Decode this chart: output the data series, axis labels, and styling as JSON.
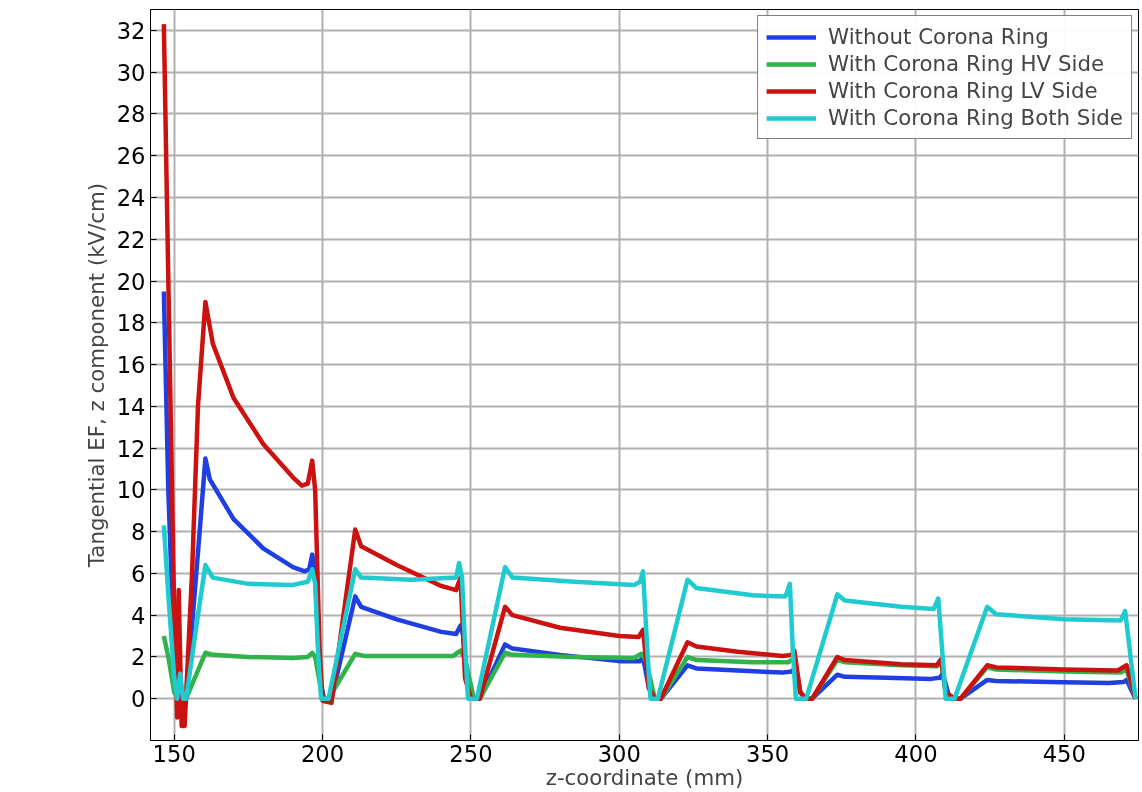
{
  "chart_data": {
    "type": "line",
    "xlabel": "z-coordinate (mm)",
    "ylabel": "Tangential EF, z component (kV/cm)",
    "xlim": [
      142,
      475
    ],
    "ylim": [
      -2,
      33
    ],
    "xticks": [
      150,
      200,
      250,
      300,
      350,
      400,
      450
    ],
    "yticks": [
      0,
      2,
      4,
      6,
      8,
      10,
      12,
      14,
      16,
      18,
      20,
      22,
      24,
      26,
      28,
      30,
      32
    ],
    "grid": true,
    "legend": "top right",
    "line_style": "solid",
    "marker": "none",
    "series": [
      {
        "name": "Without Corona Ring",
        "color": "#1f3fe0",
        "x": [
          146.5,
          148,
          150,
          152,
          153,
          154,
          158,
          160.5,
          162,
          170,
          180,
          190,
          194,
          195.5,
          196.5,
          197.5,
          199,
          200.5,
          203,
          211,
          213,
          225,
          240,
          245,
          246.5,
          247.5,
          249,
          251,
          253,
          261.5,
          264,
          280,
          300,
          307,
          308,
          310,
          312,
          314,
          323,
          326,
          340,
          355,
          358,
          359.5,
          361,
          363,
          365,
          373.5,
          376,
          390,
          405,
          408,
          409,
          411,
          413,
          415,
          424,
          427,
          445,
          465,
          470,
          471,
          474
        ],
        "values": [
          19.5,
          10,
          2,
          0,
          -0.3,
          0,
          7,
          11.5,
          10.5,
          8.6,
          7.2,
          6.3,
          6.1,
          6.2,
          6.9,
          6,
          1,
          0,
          0,
          4.9,
          4.4,
          3.8,
          3.2,
          3.1,
          3.5,
          3,
          0.5,
          0,
          0,
          2.6,
          2.4,
          2.1,
          1.8,
          1.8,
          2.0,
          0.5,
          0,
          0,
          1.6,
          1.45,
          1.35,
          1.25,
          1.3,
          1.5,
          0.3,
          0,
          0,
          1.15,
          1.05,
          1.0,
          0.95,
          1.0,
          1.2,
          0.2,
          0,
          0,
          0.9,
          0.85,
          0.8,
          0.75,
          0.8,
          0.9,
          0
        ]
      },
      {
        "name": "With Corona Ring HV Side",
        "color": "#2fb34a",
        "x": [
          146.5,
          148,
          150,
          152,
          154,
          160.5,
          163,
          175,
          190,
          195,
          196.5,
          197.5,
          200,
          202,
          211,
          214,
          230,
          244,
          246.5,
          248,
          251,
          253,
          261.5,
          264,
          285,
          305,
          307.5,
          309,
          312,
          314,
          323,
          326,
          345,
          357,
          359,
          361,
          363,
          365,
          373.5,
          376,
          395,
          407,
          408.5,
          410,
          413,
          415,
          424,
          427,
          450,
          469,
          471,
          474
        ],
        "values": [
          3,
          2,
          0.3,
          0,
          0,
          2.2,
          2.1,
          2.0,
          1.95,
          2.0,
          2.2,
          2,
          0,
          0,
          2.15,
          2.05,
          2.05,
          2.05,
          2.3,
          1.9,
          0,
          0,
          2.2,
          2.1,
          2.0,
          1.95,
          2.15,
          1.8,
          0,
          0,
          2.0,
          1.85,
          1.75,
          1.75,
          1.95,
          0.3,
          0,
          0,
          1.85,
          1.75,
          1.6,
          1.55,
          1.75,
          0.3,
          0,
          0,
          1.5,
          1.4,
          1.3,
          1.25,
          1.4,
          0
        ]
      },
      {
        "name": "With Corona Ring LV Side",
        "color": "#cc1111",
        "x": [
          146.5,
          149,
          150,
          151,
          151.5,
          152.5,
          153.5,
          156,
          158,
          160.5,
          163,
          170,
          180,
          190,
          193,
          195,
          196.5,
          197.5,
          199,
          200,
          203,
          211,
          213,
          225,
          240,
          245,
          246.5,
          248,
          250,
          253,
          261.5,
          264,
          280,
          300,
          306.5,
          308,
          310,
          312,
          314,
          323,
          326,
          340,
          355,
          358,
          359,
          361,
          363,
          365,
          373.5,
          376,
          395,
          407,
          408.5,
          410,
          413,
          415,
          424,
          427,
          450,
          468,
          471,
          474
        ],
        "values": [
          32.3,
          12,
          4,
          -0.9,
          5.2,
          -1.3,
          -1.3,
          6,
          14,
          19,
          17,
          14.4,
          12.2,
          10.6,
          10.2,
          10.3,
          11.4,
          10,
          2.3,
          -0.1,
          -0.2,
          8.1,
          7.3,
          6.4,
          5.4,
          5.2,
          5.8,
          1,
          0,
          0,
          4.4,
          4.0,
          3.4,
          3.0,
          2.95,
          3.3,
          0.5,
          0,
          0,
          2.7,
          2.5,
          2.25,
          2.05,
          2.1,
          2.3,
          0.3,
          0,
          0,
          2.0,
          1.85,
          1.65,
          1.6,
          1.9,
          0.3,
          0,
          0,
          1.6,
          1.5,
          1.4,
          1.35,
          1.6,
          0
        ]
      },
      {
        "name": "With Corona Ring Both Side",
        "color": "#1fcbcf",
        "x": [
          146.5,
          148,
          150,
          151,
          152,
          153,
          154,
          158,
          160.5,
          163,
          175,
          190,
          195,
          196.5,
          197.5,
          198.5,
          199.5,
          202,
          211,
          213,
          230,
          245,
          246,
          247,
          248,
          249,
          252,
          261.5,
          264,
          285,
          305,
          307,
          308,
          309.5,
          310.5,
          313,
          323,
          326,
          345,
          356,
          357.5,
          358.5,
          359.5,
          363,
          373.5,
          376,
          395,
          406,
          407.5,
          409,
          410,
          413,
          424,
          427,
          450,
          469,
          470.5,
          474
        ],
        "values": [
          8.3,
          5,
          1,
          0,
          1.2,
          0,
          0,
          4,
          6.4,
          5.8,
          5.5,
          5.45,
          5.6,
          6.2,
          5.5,
          2.2,
          0,
          0,
          6.2,
          5.8,
          5.7,
          5.8,
          6.5,
          5.8,
          2.6,
          0,
          0,
          6.3,
          5.8,
          5.6,
          5.45,
          5.6,
          6.1,
          2.2,
          0,
          0,
          5.7,
          5.3,
          4.95,
          4.9,
          5.5,
          2.3,
          0,
          0,
          5.0,
          4.7,
          4.4,
          4.3,
          4.8,
          2,
          0,
          0,
          4.4,
          4.05,
          3.8,
          3.75,
          4.2,
          0
        ]
      }
    ]
  }
}
